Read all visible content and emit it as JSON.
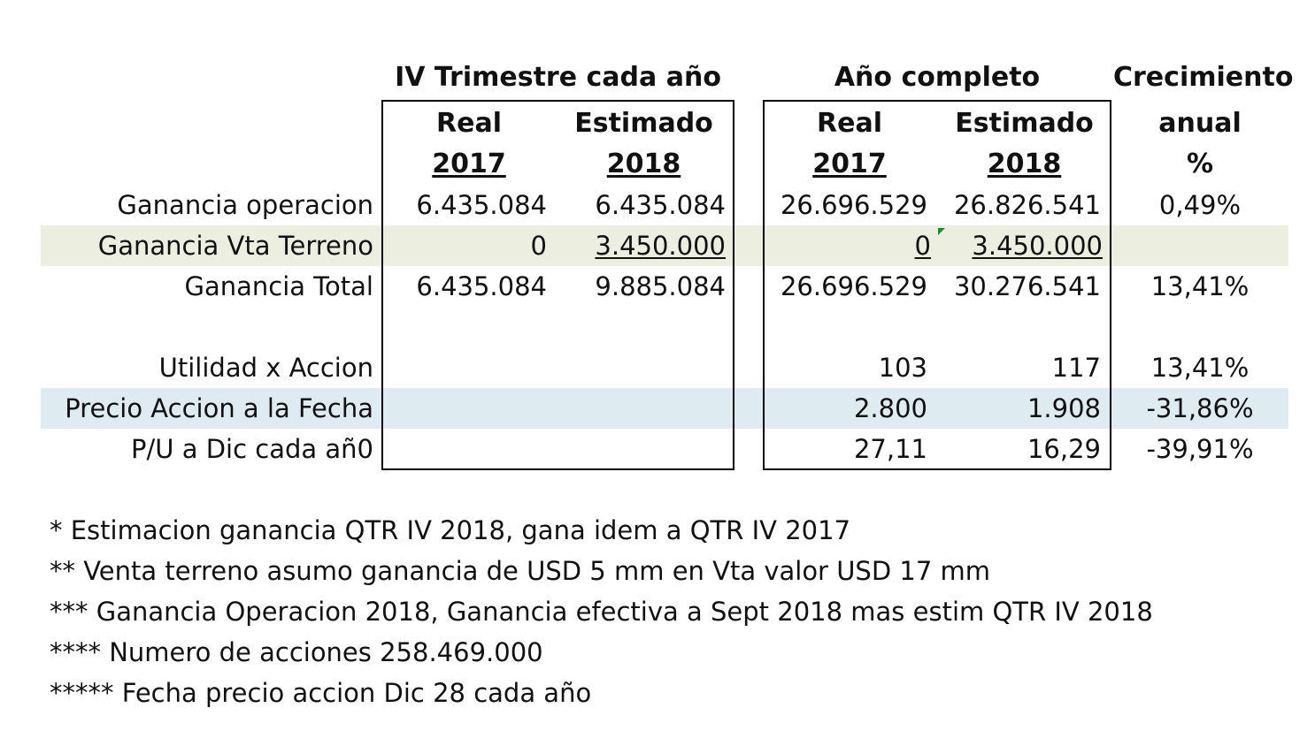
{
  "headers": {
    "group_quarter": "IV Trimestre cada año",
    "group_year": "Año completo",
    "growth_line1": "Crecimiento",
    "growth_line2": "anual",
    "growth_line3": "%",
    "real": "Real",
    "estimated": "Estimado",
    "y2017": "2017",
    "y2018": "2018"
  },
  "rows": [
    {
      "label": "Ganancia operacion",
      "q_real": "6.435.084",
      "q_est": "6.435.084",
      "y_real": "26.696.529",
      "y_est": "26.826.541",
      "growth": "0,49%"
    },
    {
      "label": "Ganancia Vta Terreno",
      "q_real": "0",
      "q_est": "3.450.000",
      "y_real": "0",
      "y_est": "3.450.000",
      "growth": ""
    },
    {
      "label": "Ganancia Total",
      "q_real": "6.435.084",
      "q_est": "9.885.084",
      "y_real": "26.696.529",
      "y_est": "30.276.541",
      "growth": "13,41%"
    },
    {
      "label": "Utilidad x Accion",
      "q_real": "",
      "q_est": "",
      "y_real": "103",
      "y_est": "117",
      "growth": "13,41%"
    },
    {
      "label": "Precio Accion a la Fecha",
      "q_real": "",
      "q_est": "",
      "y_real": "2.800",
      "y_est": "1.908",
      "growth": "-31,86%"
    },
    {
      "label": "P/U a Dic cada añ0",
      "q_real": "",
      "q_est": "",
      "y_real": "27,11",
      "y_est": "16,29",
      "growth": "-39,91%"
    }
  ],
  "notes": [
    "* Estimacion ganancia  QTR IV 2018, gana idem a QTR IV 2017",
    "** Venta terreno asumo ganancia de USD 5 mm en Vta valor USD 17 mm",
    "*** Ganancia Operacion 2018, Ganancia efectiva a Sept 2018 mas estim QTR IV 2018",
    "**** Numero de acciones 258.469.000",
    "***** Fecha precio accion Dic 28 cada año"
  ],
  "colors": {
    "band_green": "#eceee0",
    "band_blue": "#deebf1",
    "comment_marker": "#1a8a2a"
  }
}
